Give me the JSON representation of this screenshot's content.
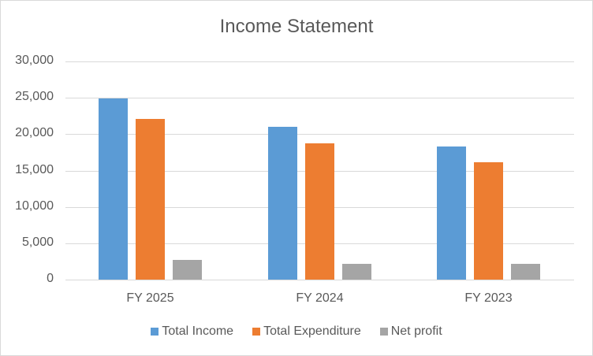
{
  "chart_data": {
    "type": "bar",
    "title": "Income Statement",
    "categories": [
      "FY 2025",
      "FY 2024",
      "FY 2023"
    ],
    "series": [
      {
        "name": "Total Income",
        "color": "#5B9BD5",
        "values": [
          24950,
          21040,
          18330
        ]
      },
      {
        "name": "Total Expenditure",
        "color": "#ED7D31",
        "values": [
          22130,
          18760,
          16160
        ]
      },
      {
        "name": "Net profit",
        "color": "#A5A5A5",
        "values": [
          2710,
          2170,
          2170
        ]
      }
    ],
    "xlabel": "",
    "ylabel": "",
    "ylim": [
      0,
      30000
    ],
    "yticks": [
      "0",
      "5,000",
      "10,000",
      "15,000",
      "20,000",
      "25,000",
      "30,000"
    ],
    "grid": true,
    "legend_position": "bottom"
  }
}
